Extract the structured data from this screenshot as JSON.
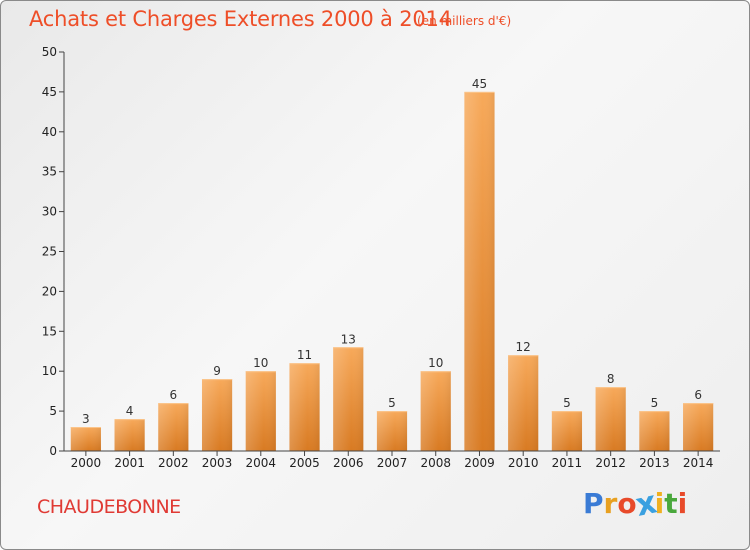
{
  "title": "Achats et Charges Externes 2000 à 2014",
  "unit": "(en milliers d'€)",
  "place": "CHAUDEBONNE",
  "brand": {
    "text": "Proxiti",
    "letters": [
      "P",
      "r",
      "o",
      "x",
      "i",
      "t",
      "i"
    ],
    "colors": [
      "#3a7bd5",
      "#e8a020",
      "#e84a2a",
      "#3aa0e0",
      "#f0b020",
      "#4aa83c",
      "#e84a2a"
    ]
  },
  "colors": {
    "title": "#ee4e28",
    "bar_top": "#f7a95a",
    "bar_bottom": "#d87a22",
    "axis": "#444444",
    "grid": "#dddddd"
  },
  "chart_data": {
    "type": "bar",
    "title": "Achats et Charges Externes 2000 à 2014",
    "subtitle": "(en milliers d'€)",
    "categories": [
      "2000",
      "2001",
      "2002",
      "2003",
      "2004",
      "2005",
      "2006",
      "2007",
      "2008",
      "2009",
      "2010",
      "2011",
      "2012",
      "2013",
      "2014"
    ],
    "values": [
      3,
      4,
      6,
      9,
      10,
      11,
      13,
      5,
      10,
      45,
      12,
      5,
      8,
      5,
      6
    ],
    "ylim": [
      0,
      50
    ],
    "yticks": [
      0,
      5,
      10,
      15,
      20,
      25,
      30,
      35,
      40,
      45,
      50
    ],
    "xlabel": "",
    "ylabel": "",
    "grid": false,
    "data_labels": true
  }
}
